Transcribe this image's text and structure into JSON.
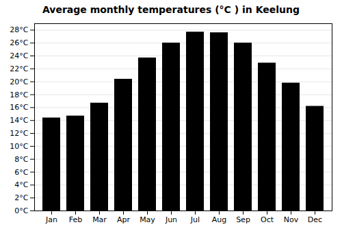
{
  "chart_data": {
    "type": "bar",
    "title": "Average monthly temperatures (°C ) in Keelung",
    "categories": [
      "Jan",
      "Feb",
      "Mar",
      "Apr",
      "May",
      "Jun",
      "Jul",
      "Aug",
      "Sep",
      "Oct",
      "Nov",
      "Dec"
    ],
    "values": [
      14.4,
      14.7,
      16.7,
      20.4,
      23.7,
      26.0,
      27.7,
      27.6,
      26.0,
      22.9,
      19.8,
      16.2
    ],
    "ylim": [
      0,
      29
    ],
    "yticks": [
      {
        "value": 0,
        "label": "0°C"
      },
      {
        "value": 2,
        "label": "2°C"
      },
      {
        "value": 4,
        "label": "4°C"
      },
      {
        "value": 6,
        "label": "6°C"
      },
      {
        "value": 8,
        "label": "8°C"
      },
      {
        "value": 10,
        "label": "10°C"
      },
      {
        "value": 12,
        "label": "12°C"
      },
      {
        "value": 14,
        "label": "14°C"
      },
      {
        "value": 16,
        "label": "16°C"
      },
      {
        "value": 18,
        "label": "18°C"
      },
      {
        "value": 20,
        "label": "20°C"
      },
      {
        "value": 22,
        "label": "22°C"
      },
      {
        "value": 24,
        "label": "24°C"
      },
      {
        "value": 26,
        "label": "26°C"
      },
      {
        "value": 28,
        "label": "28°C"
      }
    ],
    "grid": true
  }
}
